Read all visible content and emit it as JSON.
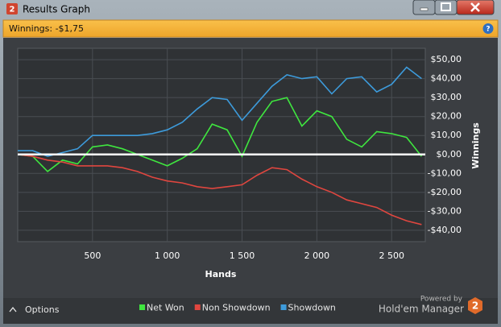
{
  "window": {
    "title": "Results Graph",
    "logo": "2",
    "help": "?"
  },
  "chart_data": {
    "type": "line",
    "title": "Winnings: -$1,75",
    "xlabel": "Hands",
    "ylabel": "Winnings",
    "x": [
      0,
      100,
      200,
      300,
      400,
      500,
      600,
      700,
      800,
      900,
      1000,
      1100,
      1200,
      1300,
      1400,
      1500,
      1600,
      1700,
      1800,
      1900,
      2000,
      2100,
      2200,
      2300,
      2400,
      2500,
      2600,
      2700
    ],
    "series": [
      {
        "name": "Net Won",
        "color": "#3fe63f",
        "values": [
          0,
          -1,
          -9,
          -3,
          -5,
          4,
          5,
          3,
          0,
          -3,
          -6,
          -2,
          3,
          16,
          13,
          -1,
          17,
          28,
          30,
          15,
          23,
          20,
          8,
          4,
          12,
          11,
          9,
          -1
        ]
      },
      {
        "name": "Non Showdown",
        "color": "#e0463f",
        "values": [
          0,
          -1,
          -3,
          -4,
          -6,
          -6,
          -6,
          -7,
          -9,
          -12,
          -14,
          -15,
          -17,
          -18,
          -17,
          -16,
          -11,
          -7,
          -8,
          -13,
          -17,
          -20,
          -24,
          -26,
          -28,
          -32,
          -35,
          -37
        ]
      },
      {
        "name": "Showdown",
        "color": "#3d9bdb",
        "values": [
          2,
          2,
          -1,
          1,
          3,
          10,
          10,
          10,
          10,
          11,
          13,
          17,
          24,
          30,
          29,
          18,
          27,
          36,
          42,
          40,
          41,
          32,
          40,
          41,
          33,
          37,
          46,
          40
        ]
      }
    ],
    "xlim": [
      0,
      2725
    ],
    "ylim": [
      -46,
      56
    ],
    "xticks": [
      500,
      {
        "value": 1000,
        "label": "1 000"
      },
      {
        "value": 1500,
        "label": "1 500"
      },
      {
        "value": 2000,
        "label": "2 000"
      },
      {
        "value": 2500,
        "label": "2 500"
      }
    ],
    "yticks": [
      {
        "value": 50,
        "label": "$50,00"
      },
      {
        "value": 40,
        "label": "$40,00"
      },
      {
        "value": 30,
        "label": "$30,00"
      },
      {
        "value": 20,
        "label": "$20,00"
      },
      {
        "value": 10,
        "label": "$10,00"
      },
      {
        "value": 0,
        "label": "$0,00"
      },
      {
        "value": -10,
        "label": "-$10,00"
      },
      {
        "value": -20,
        "label": "-$20,00"
      },
      {
        "value": -30,
        "label": "-$30,00"
      },
      {
        "value": -40,
        "label": "-$40,00"
      }
    ],
    "grid": true
  },
  "footer": {
    "options": "Options",
    "powered_by": "Powered by",
    "brand": "Hold'em Manager",
    "brand_logo": "2"
  }
}
